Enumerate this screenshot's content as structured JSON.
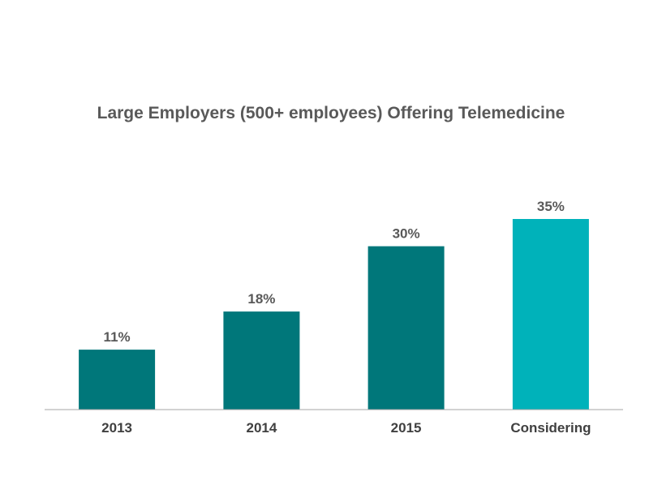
{
  "chart_data": {
    "type": "bar",
    "title": "Large Employers (500+ employees) Offering Telemedicine",
    "categories": [
      "2013",
      "2014",
      "2015",
      "Considering"
    ],
    "values": [
      11,
      18,
      30,
      35
    ],
    "data_labels": [
      "11%",
      "18%",
      "30%",
      "35%"
    ],
    "bar_colors": [
      "#00777A",
      "#00777A",
      "#00777A",
      "#00B2BA"
    ],
    "xlabel": "",
    "ylabel": "",
    "ylim": [
      0,
      35
    ],
    "grid": false,
    "legend": "none"
  }
}
